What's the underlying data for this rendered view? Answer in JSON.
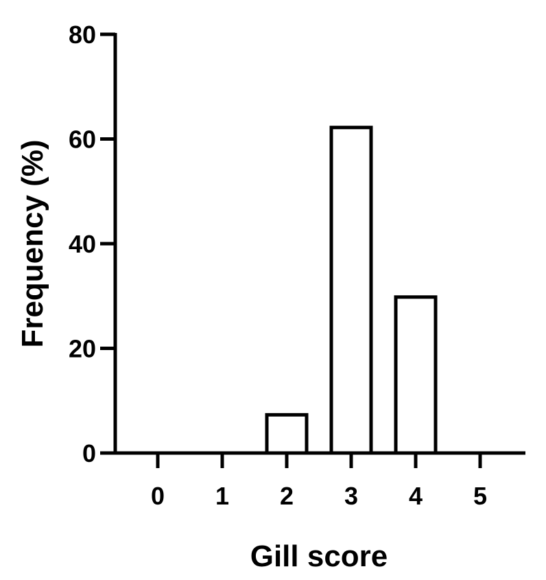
{
  "chart_data": {
    "type": "bar",
    "title": "",
    "xlabel": "Gill score",
    "ylabel": "Frequency (%)",
    "categories": [
      "0",
      "1",
      "2",
      "3",
      "4",
      "5"
    ],
    "values": [
      0,
      0,
      7.3,
      62.2,
      29.8,
      0
    ],
    "ylim": [
      0,
      80
    ],
    "yticks": [
      "0",
      "20",
      "40",
      "60",
      "80"
    ],
    "grid": false,
    "bar_fill": "#ffffff",
    "bar_stroke": "#000000"
  }
}
